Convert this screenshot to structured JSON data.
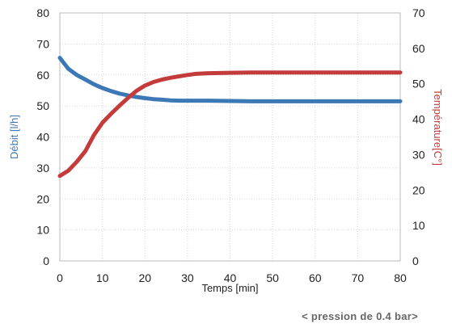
{
  "chart_data": {
    "type": "line",
    "xlabel": "Temps [min]",
    "ylabel_left": "Débit [l/h]",
    "ylabel_right": "Température[C°]",
    "xlim": [
      0,
      80
    ],
    "ylim_left": [
      0,
      80
    ],
    "ylim_right": [
      0,
      70
    ],
    "xticks": [
      0,
      10,
      20,
      30,
      40,
      50,
      60,
      70,
      80
    ],
    "yticks_left": [
      0,
      10,
      20,
      30,
      40,
      50,
      60,
      70,
      80
    ],
    "yticks_right": [
      0,
      10,
      20,
      30,
      40,
      50,
      60,
      70
    ],
    "grid": true,
    "series": [
      {
        "axis": "left",
        "color": "#3d78b6",
        "x": [
          0,
          2,
          4,
          6,
          8,
          10,
          12,
          14,
          16,
          18,
          20,
          22,
          24,
          26,
          28,
          30,
          35,
          40,
          45,
          50,
          60,
          70,
          80
        ],
        "y": [
          65.5,
          62.0,
          60.0,
          58.5,
          57.0,
          55.8,
          54.8,
          54.0,
          53.4,
          52.9,
          52.5,
          52.2,
          52.0,
          51.8,
          51.7,
          51.7,
          51.7,
          51.6,
          51.5,
          51.5,
          51.5,
          51.5,
          51.5
        ]
      },
      {
        "axis": "right",
        "color": "#c43b3b",
        "x": [
          0,
          2,
          4,
          6,
          8,
          10,
          12,
          14,
          16,
          18,
          20,
          22,
          24,
          26,
          28,
          30,
          32,
          35,
          40,
          45,
          50,
          60,
          70,
          80
        ],
        "y": [
          24,
          25.5,
          28,
          31,
          35.5,
          39,
          41.5,
          43.8,
          46.0,
          48.0,
          49.5,
          50.5,
          51.2,
          51.7,
          52.1,
          52.5,
          52.8,
          53.0,
          53.1,
          53.2,
          53.2,
          53.2,
          53.2,
          53.2
        ]
      }
    ]
  },
  "footnote": "< pression de 0.4 bar>"
}
